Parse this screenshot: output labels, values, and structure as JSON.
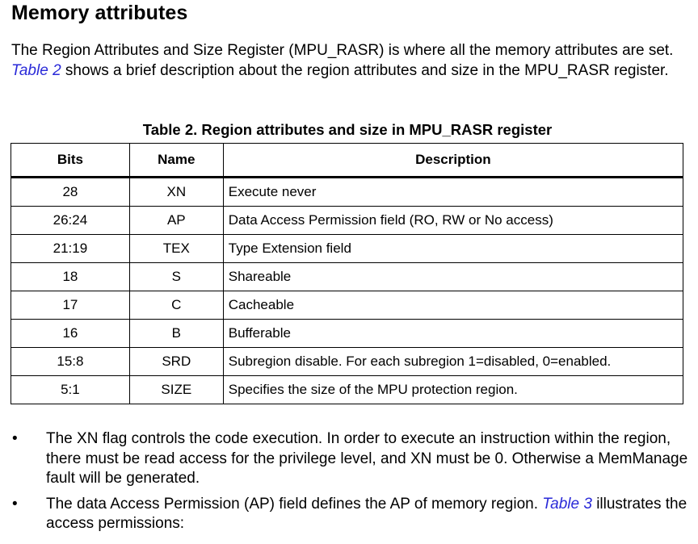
{
  "heading": "Memory attributes",
  "intro": {
    "part1": "The Region Attributes and Size Register (MPU_RASR) is where all the memory attributes are set. ",
    "link": "Table 2",
    "part2": " shows a brief description about the region attributes and size in the MPU_RASR register."
  },
  "table": {
    "caption": "Table 2. Region attributes and size in MPU_RASR register",
    "headers": {
      "bits": "Bits",
      "name": "Name",
      "description": "Description"
    },
    "rows": [
      {
        "bits": "28",
        "name": "XN",
        "description": "Execute never"
      },
      {
        "bits": "26:24",
        "name": "AP",
        "description": "Data Access Permission field (RO, RW or No access)"
      },
      {
        "bits": "21:19",
        "name": "TEX",
        "description": "Type Extension field"
      },
      {
        "bits": "18",
        "name": "S",
        "description": "Shareable"
      },
      {
        "bits": "17",
        "name": "C",
        "description": "Cacheable"
      },
      {
        "bits": "16",
        "name": "B",
        "description": "Bufferable"
      },
      {
        "bits": "15:8",
        "name": "SRD",
        "description": "Subregion disable. For each subregion 1=disabled, 0=enabled."
      },
      {
        "bits": "5:1",
        "name": "SIZE",
        "description": "Specifies the size of the MPU protection region."
      }
    ]
  },
  "bullets": [
    {
      "symbol": "•",
      "text": "The XN flag controls the code execution. In order to execute an instruction within the region, there must be read access for the privilege level, and XN must be 0. Otherwise a MemManage fault will be generated."
    },
    {
      "symbol": "•",
      "text_before": "The data Access Permission (AP) field defines the AP of memory region. ",
      "link": "Table 3",
      "text_after": " illustrates the access permissions:"
    }
  ],
  "colors": {
    "link": "#2a2ad8",
    "text": "#000000",
    "background": "#ffffff"
  }
}
